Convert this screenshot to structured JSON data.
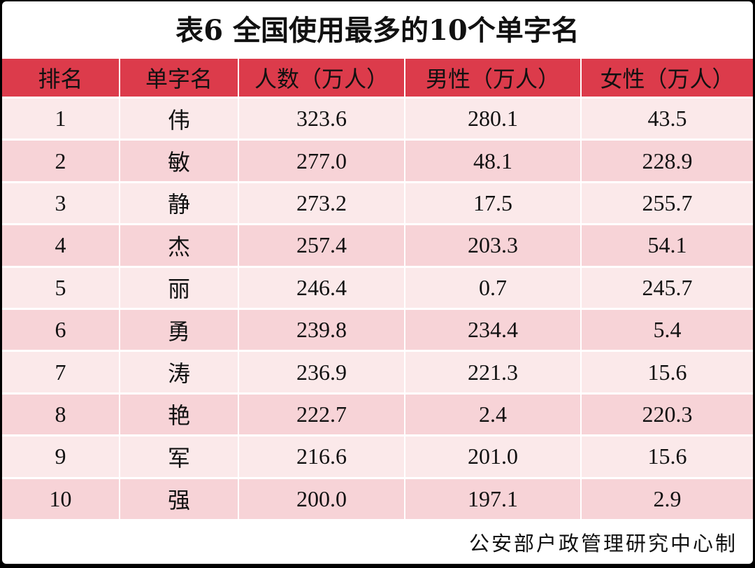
{
  "title": "表6  全国使用最多的10个单字名",
  "table": {
    "headers": [
      "排名",
      "单字名",
      "人数（万人）",
      "男性（万人）",
      "女性（万人）"
    ],
    "rows": [
      {
        "rank": "1",
        "name": "伟",
        "total": "323.6",
        "male": "280.1",
        "female": "43.5"
      },
      {
        "rank": "2",
        "name": "敏",
        "total": "277.0",
        "male": "48.1",
        "female": "228.9"
      },
      {
        "rank": "3",
        "name": "静",
        "total": "273.2",
        "male": "17.5",
        "female": "255.7"
      },
      {
        "rank": "4",
        "name": "杰",
        "total": "257.4",
        "male": "203.3",
        "female": "54.1"
      },
      {
        "rank": "5",
        "name": "丽",
        "total": "246.4",
        "male": "0.7",
        "female": "245.7"
      },
      {
        "rank": "6",
        "name": "勇",
        "total": "239.8",
        "male": "234.4",
        "female": "5.4"
      },
      {
        "rank": "7",
        "name": "涛",
        "total": "236.9",
        "male": "221.3",
        "female": "15.6"
      },
      {
        "rank": "8",
        "name": "艳",
        "total": "222.7",
        "male": "2.4",
        "female": "220.3"
      },
      {
        "rank": "9",
        "name": "军",
        "total": "216.6",
        "male": "201.0",
        "female": "15.6"
      },
      {
        "rank": "10",
        "name": "强",
        "total": "200.0",
        "male": "197.1",
        "female": "2.9"
      }
    ]
  },
  "source": "公安部户政管理研究中心制",
  "colors": {
    "header_bg": "#dc3b4b",
    "row_light": "#fbe9ea",
    "row_dark": "#f7d3d7"
  }
}
